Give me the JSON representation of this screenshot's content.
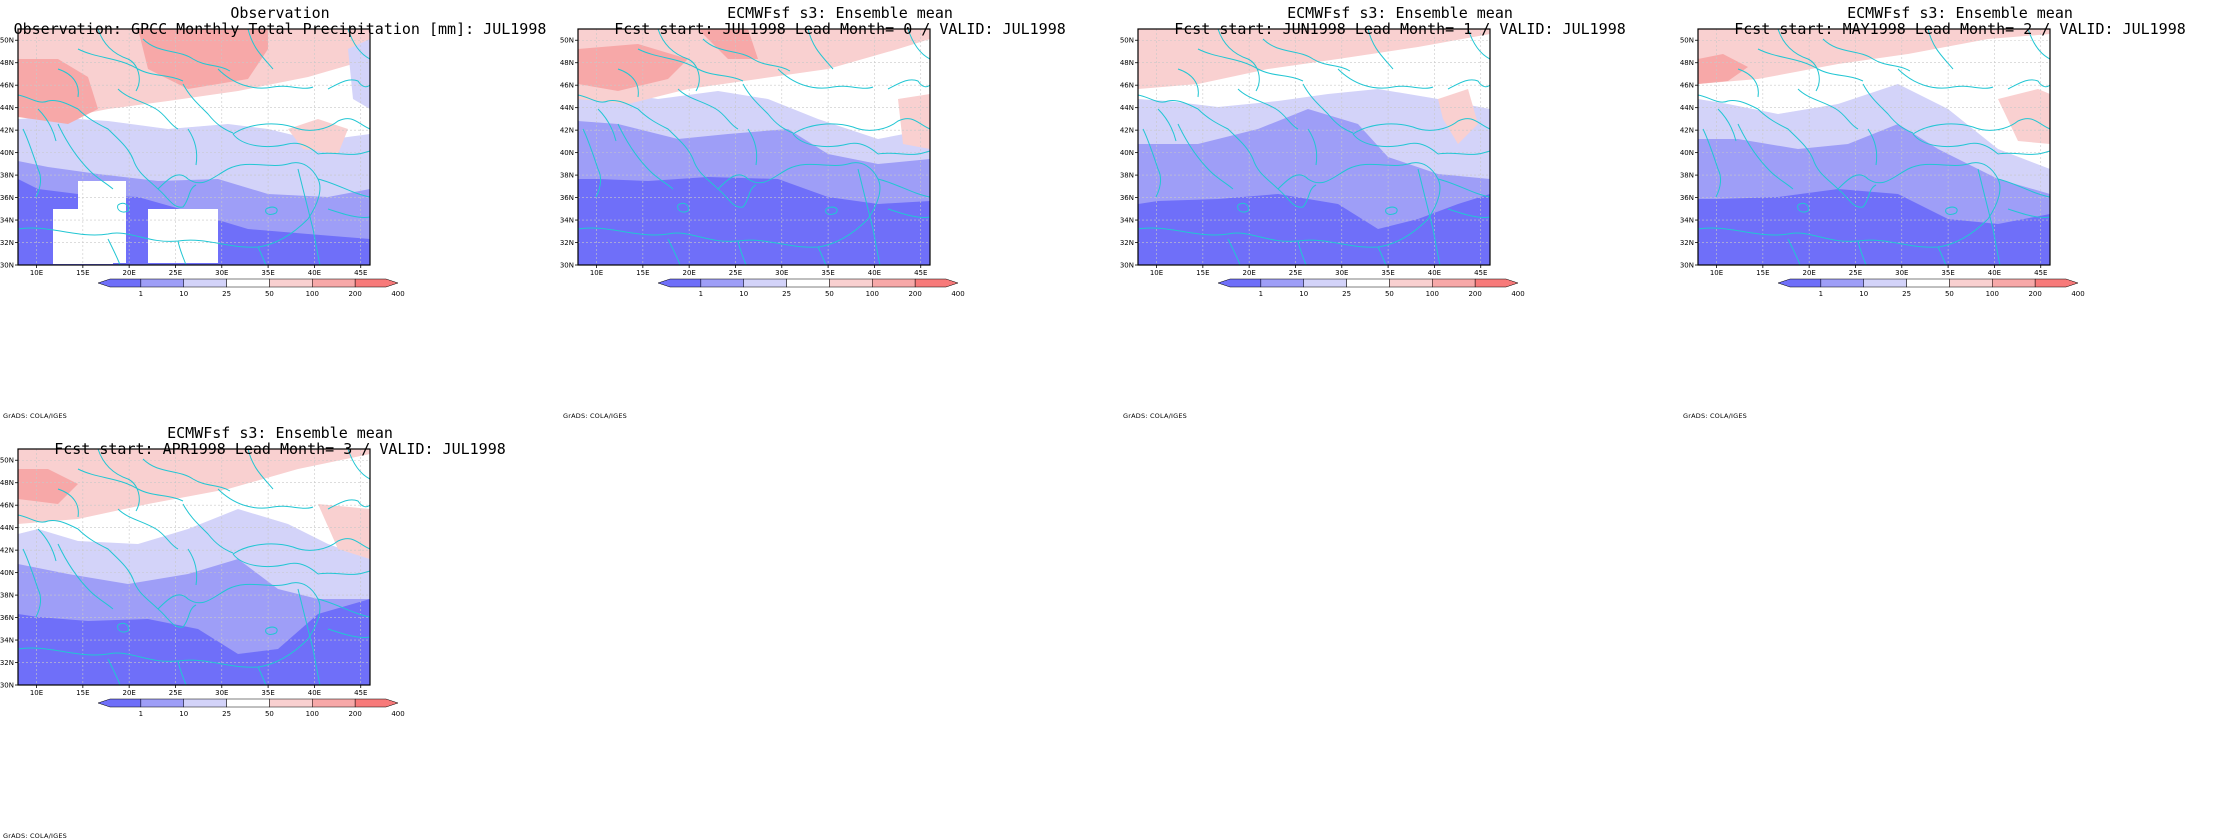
{
  "panels": [
    {
      "title_line1": "Observation",
      "title_line2": "Observation: GPCC Monthly Total Precipitation [mm]: JUL1998",
      "credit": "GrADS: COLA/IGES",
      "variant": 0
    },
    {
      "title_line1": "ECMWFsf s3: Ensemble mean",
      "title_line2": "Fcst start: JUL1998  Lead Month= 0 / VALID: JUL1998",
      "credit": "GrADS: COLA/IGES",
      "variant": 1
    },
    {
      "title_line1": "ECMWFsf s3: Ensemble mean",
      "title_line2": "Fcst start: JUN1998  Lead Month= 1 / VALID: JUL1998",
      "credit": "GrADS: COLA/IGES",
      "variant": 2
    },
    {
      "title_line1": "ECMWFsf s3: Ensemble mean",
      "title_line2": "Fcst start: MAY1998  Lead Month= 2 / VALID: JUL1998",
      "credit": "GrADS: COLA/IGES",
      "variant": 3
    },
    {
      "title_line1": "ECMWFsf s3: Ensemble mean",
      "title_line2": "Fcst start: APR1998  Lead Month= 3 / VALID: JUL1998",
      "credit": "GrADS: COLA/IGES",
      "variant": 4
    }
  ],
  "map": {
    "lon_ticks": [
      "10E",
      "15E",
      "20E",
      "25E",
      "30E",
      "35E",
      "40E",
      "45E"
    ],
    "lat_ticks": [
      "50N",
      "48N",
      "46N",
      "44N",
      "42N",
      "40N",
      "38N",
      "36N",
      "34N",
      "32N",
      "30N"
    ],
    "lon_range": [
      8,
      46
    ],
    "lat_range": [
      30,
      51
    ]
  },
  "colorbar": {
    "labels": [
      "1",
      "10",
      "25",
      "50",
      "100",
      "200",
      "400"
    ],
    "colors": [
      "#6f6ff9",
      "#9e9ef7",
      "#d3d3f9",
      "#ffffff",
      "#f9d0d0",
      "#f7a8a8",
      "#f77a7a"
    ]
  },
  "colors": {
    "coast": "#22c6d3",
    "grid": "#c8c8c8"
  }
}
